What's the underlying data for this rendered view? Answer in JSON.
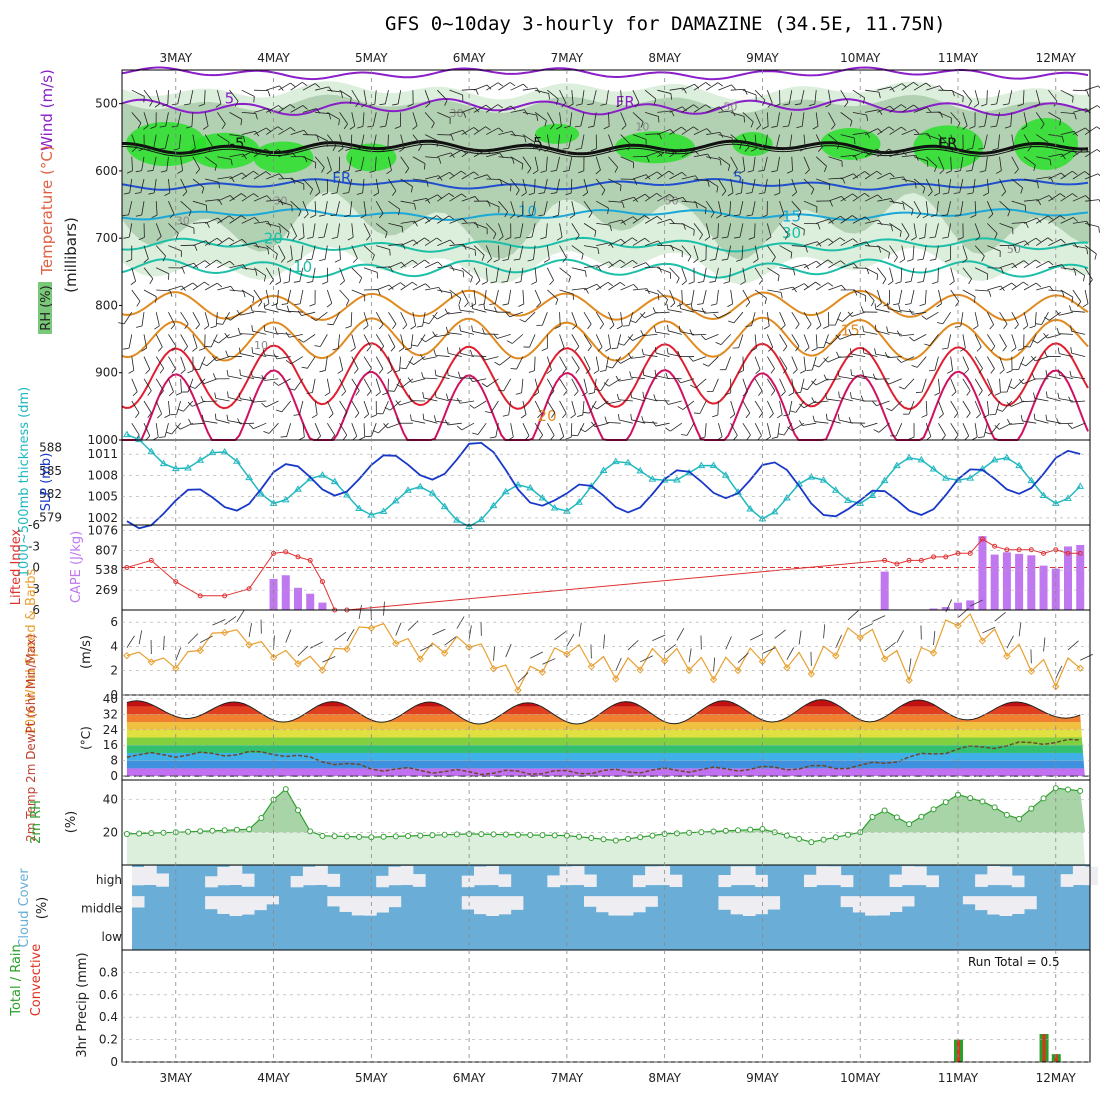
{
  "title": "GFS 0~10day 3-hourly for DAMAZINE (34.5E, 11.75N)",
  "x_dates": [
    "3MAY",
    "4MAY",
    "5MAY",
    "6MAY",
    "7MAY",
    "8MAY",
    "9MAY",
    "10MAY",
    "11MAY",
    "12MAY"
  ],
  "panels": {
    "upper_air": {
      "label_wind": "Wind (m/s)",
      "label_temp": "Temperature (°C)",
      "label_rh": "RH (%)",
      "label_units": "(millibars)",
      "y_ticks": [
        "500",
        "600",
        "700",
        "800",
        "900",
        "1000"
      ],
      "contour_labels": [
        "5",
        "-5",
        "FR",
        "-5",
        "FR",
        "FR",
        "5",
        "10",
        "15",
        "20",
        "30",
        "10",
        "15",
        "20",
        "30",
        "10",
        "30",
        "50",
        "50",
        "30",
        "50",
        "10"
      ]
    },
    "thickness_slp": {
      "label_thickness": "1000~500mb thickness (dm)",
      "label_slp": "SLP (mb)",
      "thickness_ticks": [
        "588",
        "585",
        "582",
        "579"
      ],
      "slp_ticks": [
        "1011",
        "1008",
        "1005",
        "1002"
      ]
    },
    "lifted_cape": {
      "label_li": "Lifted Index",
      "label_cape": "CAPE (J/kg)",
      "li_ticks": [
        "-6",
        "-3",
        "0",
        "3",
        "6"
      ],
      "cape_ticks": [
        "1076",
        "807",
        "538",
        "269"
      ]
    },
    "wind10m": {
      "label": "10m Wind Speed & Barbs",
      "units": "(m/s)",
      "y_ticks": [
        "6",
        "4",
        "2",
        "0"
      ]
    },
    "temp2m": {
      "label": "2m Temp 2m DewPt (6hr Min/Max)",
      "units": "(°C)",
      "y_ticks": [
        "40",
        "32",
        "24",
        "16",
        "8",
        "0"
      ]
    },
    "rh2m": {
      "label": "2m RH",
      "units": "(%)",
      "y_ticks": [
        "40",
        "20"
      ]
    },
    "cloud": {
      "label": "Cloud Cover",
      "units": "(%)",
      "levels": [
        "high",
        "middle",
        "low"
      ]
    },
    "precip": {
      "label_total": "Total / Rain",
      "label_conv": "Convective",
      "label_units": "3hr Precip (mm)",
      "y_ticks": [
        "0.8",
        "0.6",
        "0.4",
        "0.2",
        "0"
      ],
      "run_total": "Run Total = 0.5"
    }
  },
  "colors": {
    "temp_neg": "#8a1ec8",
    "temp_low": "#1f4fd0",
    "temp_mid": "#1aa8d8",
    "temp_warm": "#1cc0a8",
    "temp_hot": "#e08a20",
    "temp_vhot": "#e02030",
    "rh_light": "#d8ecd8",
    "rh_mid": "#a8c8a8",
    "rh_high": "#28e028",
    "thickness": "#20b8c0",
    "slp": "#1838c8",
    "li": "#e03030",
    "cape": "#c078f0",
    "wind": "#e8a030",
    "rh2m": "#30a030",
    "cloud": "#6aaed8",
    "cloud_clear": "#eeeef2",
    "precip_total": "#28a028",
    "precip_conv": "#e03020"
  },
  "chart_data": [
    {
      "type": "line",
      "title": "1000~500mb thickness (dm) / SLP (mb)",
      "x": [
        "3MAY",
        "4MAY",
        "5MAY",
        "6MAY",
        "7MAY",
        "8MAY",
        "9MAY",
        "10MAY",
        "11MAY",
        "12MAY"
      ],
      "series": [
        {
          "name": "1000~500mb thickness (dm)",
          "values": [
            587.5,
            583,
            581.5,
            580,
            582,
            586,
            581,
            583,
            586,
            583
          ]
        },
        {
          "name": "SLP (mb)",
          "values": [
            1003,
            1007,
            1008,
            1011,
            1004,
            1006,
            1008,
            1003,
            1006,
            1009
          ]
        }
      ],
      "ylim_thickness": [
        578,
        589
      ],
      "ylim_slp": [
        1001,
        1013
      ]
    },
    {
      "type": "bar",
      "title": "Lifted Index / CAPE (J/kg)",
      "x_days": [
        2.5,
        2.75,
        3,
        3.25,
        3.5,
        3.75,
        4,
        4.125,
        4.25,
        4.375,
        4.5,
        4.625,
        4.75,
        10.25,
        10.375,
        10.5,
        10.625,
        10.75,
        10.875,
        11,
        11.125,
        11.25,
        11.375,
        11.5,
        11.625,
        11.75,
        11.875,
        12,
        12.125,
        12.25
      ],
      "cape": [
        0,
        0,
        0,
        0,
        0,
        0,
        420,
        470,
        300,
        220,
        100,
        0,
        0,
        520,
        0,
        0,
        0,
        20,
        40,
        100,
        130,
        1000,
        750,
        780,
        760,
        740,
        600,
        560,
        860,
        880
      ],
      "li": [
        0,
        -1,
        2,
        4,
        4,
        3,
        -2,
        -2.2,
        -1.5,
        -1,
        2,
        6,
        6,
        -1,
        -0.5,
        -1,
        -1,
        -1.5,
        -1.5,
        -2,
        -2,
        -4,
        -3,
        -2.5,
        -2.5,
        -2.5,
        -2,
        -2.5,
        -2,
        -2
      ]
    },
    {
      "type": "line",
      "title": "10m Wind Speed",
      "x_days": [
        2.5,
        3,
        3.5,
        4,
        4.5,
        5,
        5.5,
        6,
        6.5,
        7,
        7.5,
        8,
        8.5,
        9,
        9.5,
        10,
        10.5,
        11,
        11.5,
        12,
        12.25
      ],
      "values": [
        3.5,
        2.5,
        5.5,
        3.5,
        2.5,
        6,
        3.5,
        4.5,
        1,
        4,
        2,
        3.5,
        2,
        3.5,
        2.5,
        5.5,
        2,
        6.5,
        4,
        1.5,
        3
      ],
      "ylim": [
        0,
        7
      ]
    },
    {
      "type": "area",
      "title": "2m Temp / 2m DewPt",
      "x": [
        "3MAY",
        "4MAY",
        "5MAY",
        "6MAY",
        "7MAY",
        "8MAY",
        "9MAY",
        "10MAY",
        "11MAY",
        "12MAY"
      ],
      "series": [
        {
          "name": "2m Temp max",
          "values": [
            39,
            38,
            39,
            38,
            38,
            39,
            39,
            40,
            39,
            38
          ]
        },
        {
          "name": "2m Temp min",
          "values": [
            30,
            28,
            28,
            27,
            27,
            27,
            28,
            28,
            29,
            30
          ]
        },
        {
          "name": "2m DewPt",
          "values": [
            11,
            12,
            4,
            2,
            2,
            3,
            4,
            5,
            14,
            18
          ]
        }
      ],
      "ylim": [
        -2,
        42
      ]
    },
    {
      "type": "area",
      "title": "2m RH",
      "x": [
        "3MAY",
        "4MAY",
        "5MAY",
        "6MAY",
        "7MAY",
        "8MAY",
        "9MAY",
        "10MAY",
        "11MAY",
        "12MAY"
      ],
      "values": [
        20,
        49,
        17,
        19,
        18,
        19,
        22,
        35,
        43,
        47
      ],
      "ylim": [
        0,
        52
      ]
    },
    {
      "type": "bar",
      "title": "3hr Precip (mm)",
      "x_days": [
        11.0,
        11.875,
        12.0
      ],
      "values": [
        0.2,
        0.25,
        0.07
      ],
      "ylim": [
        0,
        1.0
      ],
      "annotation": "Run Total = 0.5"
    }
  ]
}
